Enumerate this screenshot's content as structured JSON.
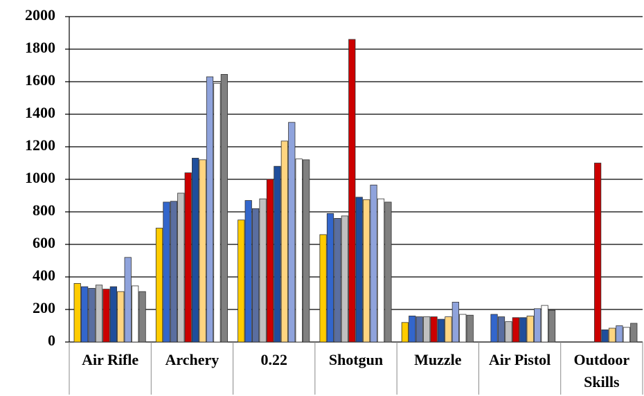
{
  "chart_data": {
    "type": "bar",
    "categories": [
      "Air Rifle",
      "Archery",
      "0.22",
      "Shotgun",
      "Muzzle",
      "Air Pistol",
      "Outdoor Skills"
    ],
    "series": [
      {
        "color": "#ffcc00",
        "values": [
          360,
          700,
          750,
          660,
          120,
          null,
          null
        ]
      },
      {
        "color": "#3366cc",
        "values": [
          340,
          860,
          870,
          790,
          160,
          170,
          null
        ]
      },
      {
        "color": "#5a6ea0",
        "values": [
          330,
          865,
          820,
          760,
          155,
          155,
          null
        ]
      },
      {
        "color": "#c0c0c0",
        "values": [
          350,
          915,
          880,
          775,
          155,
          125,
          null
        ]
      },
      {
        "color": "#cc0000",
        "values": [
          325,
          1040,
          1000,
          1860,
          155,
          150,
          1100
        ]
      },
      {
        "color": "#1f4e9c",
        "values": [
          340,
          1130,
          1080,
          890,
          140,
          150,
          75
        ]
      },
      {
        "color": "#ffd580",
        "values": [
          310,
          1120,
          1235,
          875,
          155,
          160,
          85
        ]
      },
      {
        "color": "#8fa3dc",
        "values": [
          520,
          1630,
          1350,
          965,
          245,
          205,
          100
        ]
      },
      {
        "color": "#ffffff",
        "values": [
          345,
          1590,
          1125,
          880,
          170,
          225,
          90
        ]
      },
      {
        "color": "#808080",
        "values": [
          310,
          1645,
          1120,
          860,
          165,
          195,
          115
        ]
      }
    ],
    "ylim": [
      0,
      2000
    ],
    "yticks": [
      0,
      200,
      400,
      600,
      800,
      1000,
      1200,
      1400,
      1600,
      1800,
      2000
    ],
    "grid": true
  }
}
